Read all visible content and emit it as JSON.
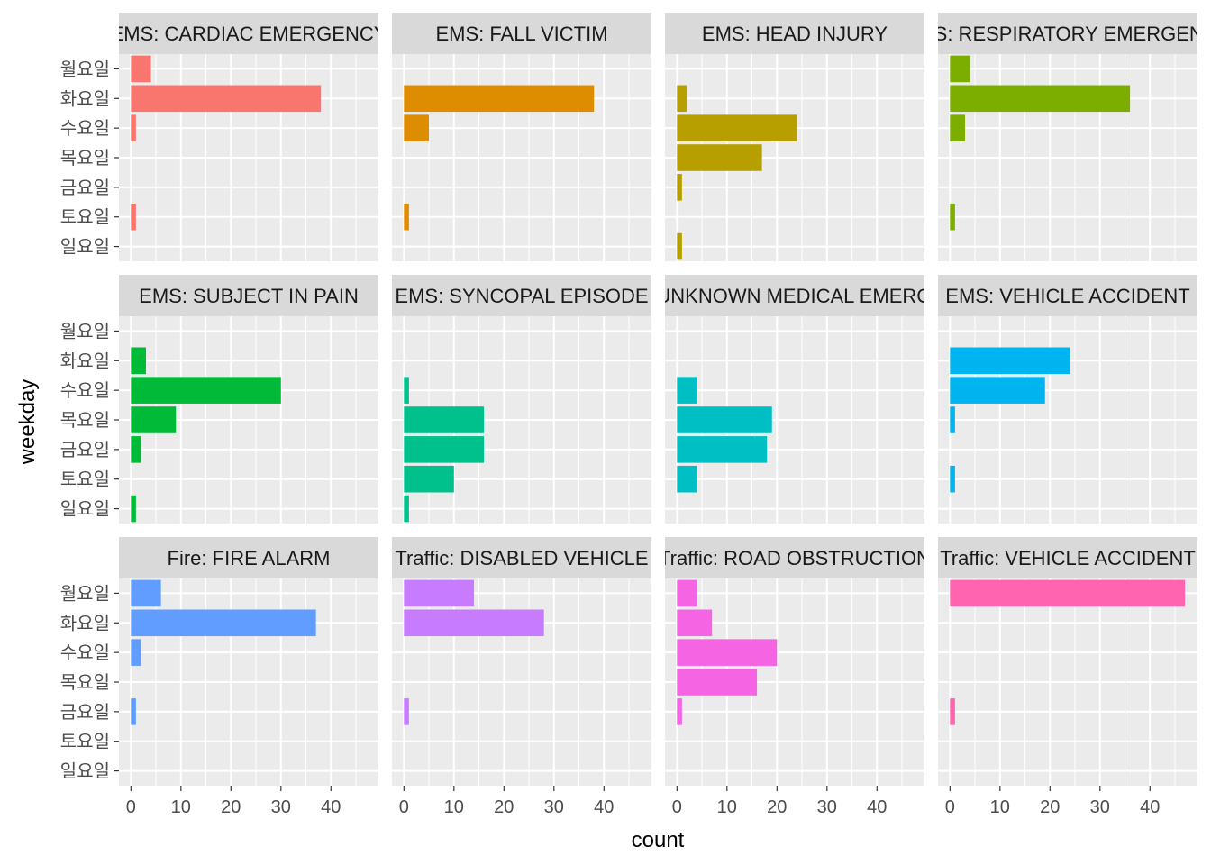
{
  "chart_data": {
    "type": "bar",
    "orientation": "horizontal",
    "facet_layout": "3 rows x 4 columns",
    "xlabel": "count",
    "ylabel": "weekday",
    "xlim": [
      -2.4,
      49.5
    ],
    "x_ticks": [
      0,
      10,
      20,
      30,
      40
    ],
    "x_tick_labels": [
      "0",
      "10",
      "20",
      "30",
      "40"
    ],
    "categories": [
      "월요일",
      "화요일",
      "수요일",
      "목요일",
      "금요일",
      "토요일",
      "일요일"
    ],
    "grid": true,
    "legend": "none",
    "panel_background": "#EBEBEB",
    "strip_background": "#D9D9D9",
    "gridline_color": "#FFFFFF",
    "facets": [
      {
        "title": "EMS: CARDIAC EMERGENCY",
        "color": "#F8766D",
        "values": [
          4,
          38,
          1,
          0,
          0,
          1,
          0
        ]
      },
      {
        "title": "EMS: FALL VICTIM",
        "color": "#DE8C00",
        "values": [
          0,
          38,
          5,
          0,
          0,
          1,
          0
        ]
      },
      {
        "title": "EMS: HEAD INJURY",
        "color": "#B79F00",
        "values": [
          0,
          2,
          24,
          17,
          1,
          0,
          1
        ]
      },
      {
        "title": "EMS: RESPIRATORY EMERGENCY",
        "color": "#7CAE00",
        "values": [
          4,
          36,
          3,
          0,
          0,
          1,
          0
        ]
      },
      {
        "title": "EMS: SUBJECT IN PAIN",
        "color": "#00BA38",
        "values": [
          0,
          3,
          30,
          9,
          2,
          0,
          1
        ]
      },
      {
        "title": "EMS: SYNCOPAL EPISODE",
        "color": "#00C08B",
        "values": [
          0,
          0,
          1,
          16,
          16,
          10,
          1
        ]
      },
      {
        "title": "EMS: UNKNOWN MEDICAL EMERGENCY",
        "color": "#00BFC4",
        "values": [
          0,
          0,
          4,
          19,
          18,
          4,
          0
        ]
      },
      {
        "title": "EMS: VEHICLE ACCIDENT",
        "color": "#00B4F0",
        "values": [
          0,
          24,
          19,
          1,
          0,
          1,
          0
        ]
      },
      {
        "title": "Fire: FIRE ALARM",
        "color": "#619CFF",
        "values": [
          6,
          37,
          2,
          0,
          1,
          0,
          0
        ]
      },
      {
        "title": "Traffic: DISABLED VEHICLE",
        "color": "#C77CFF",
        "values": [
          14,
          28,
          0,
          0,
          1,
          0,
          0
        ]
      },
      {
        "title": "Traffic: ROAD OBSTRUCTION",
        "color": "#F564E3",
        "values": [
          4,
          7,
          20,
          16,
          1,
          0,
          0
        ]
      },
      {
        "title": "Traffic: VEHICLE ACCIDENT",
        "color": "#FF64B0",
        "values": [
          47,
          0,
          0,
          0,
          1,
          0,
          0
        ]
      }
    ]
  }
}
